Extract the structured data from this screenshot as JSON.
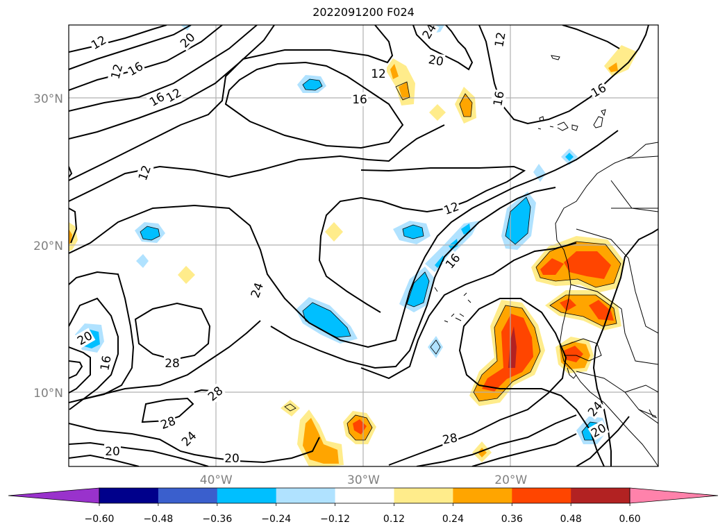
{
  "title": "2022091200 F024",
  "map": {
    "lat_ticks": [
      {
        "value": 30,
        "label": "30°N"
      },
      {
        "value": 20,
        "label": "20°N"
      },
      {
        "value": 10,
        "label": "10°N"
      }
    ],
    "lon_ticks": [
      {
        "value": -40,
        "label": "40°W"
      },
      {
        "value": -30,
        "label": "30°W"
      },
      {
        "value": -20,
        "label": "20°W"
      }
    ],
    "contour_labels": [
      "12",
      "20",
      "12",
      "16",
      "16",
      "12",
      "24",
      "12",
      "20",
      "12",
      "16",
      "16",
      "12",
      "16",
      "12",
      "16",
      "24",
      "20",
      "16",
      "28",
      "28",
      "28",
      "24",
      "20",
      "20",
      "28",
      "24",
      "20"
    ]
  },
  "colorbar": {
    "colors": [
      "#9932cc",
      "#00008b",
      "#3a5fcd",
      "#00bfff",
      "#b0e2ff",
      "#ffffff",
      "#ffec8b",
      "#ffa500",
      "#ff4500",
      "#b22222",
      "#ff82ab"
    ],
    "tick_labels": [
      "−0.60",
      "−0.48",
      "−0.36",
      "−0.24",
      "−0.12",
      "0.12",
      "0.24",
      "0.36",
      "0.48",
      "0.60"
    ]
  },
  "legend_colors": {
    "frame": "#000000",
    "grid": "#b0b0b0",
    "tick_label": "#808080"
  }
}
